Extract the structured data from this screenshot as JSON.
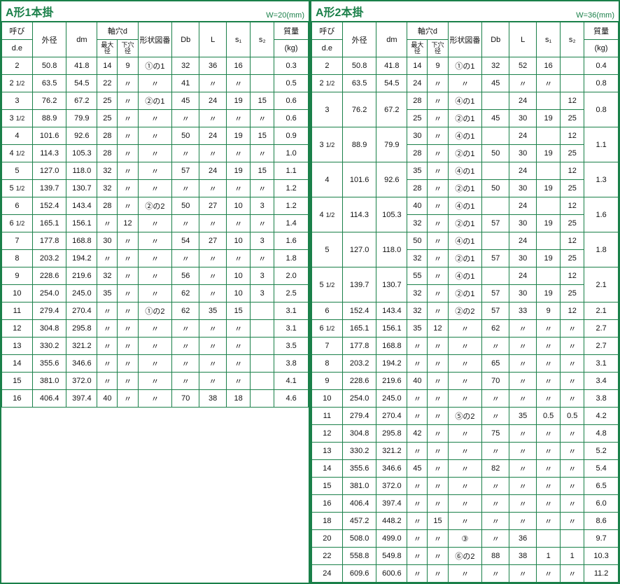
{
  "left": {
    "title": "A形1本掛",
    "wnote": "W=20(mm)",
    "headers": {
      "yobi_top": "呼び",
      "yobi_sub": "d.e",
      "gaikei_top": "外径",
      "dm": "dm",
      "jikuana": "軸穴d",
      "max": "最大径",
      "shita": "下穴径",
      "keijo": "形状図番",
      "db": "Db",
      "l": "L",
      "s1": "s₁",
      "s2": "s₂",
      "mass_top": "質量",
      "mass_sub": "(kg)"
    },
    "rows": [
      [
        "2",
        "50.8",
        "41.8",
        "14",
        "9",
        "①の1",
        "32",
        "36",
        "16",
        "",
        "0.3"
      ],
      [
        "2 1/2",
        "63.5",
        "54.5",
        "22",
        "〃",
        "〃",
        "41",
        "〃",
        "〃",
        "",
        "0.5"
      ],
      [
        "3",
        "76.2",
        "67.2",
        "25",
        "〃",
        "②の1",
        "45",
        "24",
        "19",
        "15",
        "0.6"
      ],
      [
        "3 1/2",
        "88.9",
        "79.9",
        "25",
        "〃",
        "〃",
        "〃",
        "〃",
        "〃",
        "〃",
        "0.6"
      ],
      [
        "4",
        "101.6",
        "92.6",
        "28",
        "〃",
        "〃",
        "50",
        "24",
        "19",
        "15",
        "0.9"
      ],
      [
        "4 1/2",
        "114.3",
        "105.3",
        "28",
        "〃",
        "〃",
        "〃",
        "〃",
        "〃",
        "〃",
        "1.0"
      ],
      [
        "5",
        "127.0",
        "118.0",
        "32",
        "〃",
        "〃",
        "57",
        "24",
        "19",
        "15",
        "1.1"
      ],
      [
        "5 1/2",
        "139.7",
        "130.7",
        "32",
        "〃",
        "〃",
        "〃",
        "〃",
        "〃",
        "〃",
        "1.2"
      ],
      [
        "6",
        "152.4",
        "143.4",
        "28",
        "〃",
        "②の2",
        "50",
        "27",
        "10",
        "3",
        "1.2"
      ],
      [
        "6 1/2",
        "165.1",
        "156.1",
        "〃",
        "12",
        "〃",
        "〃",
        "〃",
        "〃",
        "〃",
        "1.4"
      ],
      [
        "7",
        "177.8",
        "168.8",
        "30",
        "〃",
        "〃",
        "54",
        "27",
        "10",
        "3",
        "1.6"
      ],
      [
        "8",
        "203.2",
        "194.2",
        "〃",
        "〃",
        "〃",
        "〃",
        "〃",
        "〃",
        "〃",
        "1.8"
      ],
      [
        "9",
        "228.6",
        "219.6",
        "32",
        "〃",
        "〃",
        "56",
        "〃",
        "10",
        "3",
        "2.0"
      ],
      [
        "10",
        "254.0",
        "245.0",
        "35",
        "〃",
        "〃",
        "62",
        "〃",
        "10",
        "3",
        "2.5"
      ],
      [
        "11",
        "279.4",
        "270.4",
        "〃",
        "〃",
        "①の2",
        "62",
        "35",
        "15",
        "",
        "3.1"
      ],
      [
        "12",
        "304.8",
        "295.8",
        "〃",
        "〃",
        "〃",
        "〃",
        "〃",
        "〃",
        "",
        "3.1"
      ],
      [
        "13",
        "330.2",
        "321.2",
        "〃",
        "〃",
        "〃",
        "〃",
        "〃",
        "〃",
        "",
        "3.5"
      ],
      [
        "14",
        "355.6",
        "346.6",
        "〃",
        "〃",
        "〃",
        "〃",
        "〃",
        "〃",
        "",
        "3.8"
      ],
      [
        "15",
        "381.0",
        "372.0",
        "〃",
        "〃",
        "〃",
        "〃",
        "〃",
        "〃",
        "",
        "4.1"
      ],
      [
        "16",
        "406.4",
        "397.4",
        "40",
        "〃",
        "〃",
        "70",
        "38",
        "18",
        "",
        "4.6"
      ]
    ]
  },
  "right": {
    "title": "A形2本掛",
    "wnote": "W=36(mm)",
    "headers": {
      "yobi_top": "呼び",
      "yobi_sub": "d.e",
      "gaikei_top": "外径",
      "dm": "dm",
      "jikuana": "軸穴d",
      "max": "最大径",
      "shita": "下穴径",
      "keijo": "形状図番",
      "db": "Db",
      "l": "L",
      "s1": "s₁",
      "s2": "s₂",
      "mass_top": "質量",
      "mass_sub": "(kg)"
    },
    "rows": [
      {
        "span": 1,
        "cells": [
          "2",
          "50.8",
          "41.8",
          "14",
          "9",
          "①の1",
          "32",
          "52",
          "16",
          "",
          "0.4"
        ]
      },
      {
        "span": 1,
        "cells": [
          "2 1/2",
          "63.5",
          "54.5",
          "24",
          "〃",
          "〃",
          "45",
          "〃",
          "〃",
          "",
          "0.8"
        ]
      },
      {
        "span": 2,
        "base": [
          "3",
          "76.2",
          "67.2"
        ],
        "sub": [
          [
            "28",
            "〃",
            "④の1",
            "",
            "24",
            "",
            "12"
          ],
          [
            "25",
            "〃",
            "②の1",
            "45",
            "30",
            "19",
            "25"
          ]
        ],
        "mass": "0.8"
      },
      {
        "span": 2,
        "base": [
          "3 1/2",
          "88.9",
          "79.9"
        ],
        "sub": [
          [
            "30",
            "〃",
            "④の1",
            "",
            "24",
            "",
            "12"
          ],
          [
            "28",
            "〃",
            "②の1",
            "50",
            "30",
            "19",
            "25"
          ]
        ],
        "mass": "1.1"
      },
      {
        "span": 2,
        "base": [
          "4",
          "101.6",
          "92.6"
        ],
        "sub": [
          [
            "35",
            "〃",
            "④の1",
            "",
            "24",
            "",
            "12"
          ],
          [
            "28",
            "〃",
            "②の1",
            "50",
            "30",
            "19",
            "25"
          ]
        ],
        "mass": "1.3"
      },
      {
        "span": 2,
        "base": [
          "4 1/2",
          "114.3",
          "105.3"
        ],
        "sub": [
          [
            "40",
            "〃",
            "④の1",
            "",
            "24",
            "",
            "12"
          ],
          [
            "32",
            "〃",
            "②の1",
            "57",
            "30",
            "19",
            "25"
          ]
        ],
        "mass": "1.6"
      },
      {
        "span": 2,
        "base": [
          "5",
          "127.0",
          "118.0"
        ],
        "sub": [
          [
            "50",
            "〃",
            "④の1",
            "",
            "24",
            "",
            "12"
          ],
          [
            "32",
            "〃",
            "②の1",
            "57",
            "30",
            "19",
            "25"
          ]
        ],
        "mass": "1.8"
      },
      {
        "span": 2,
        "base": [
          "5 1/2",
          "139.7",
          "130.7"
        ],
        "sub": [
          [
            "55",
            "〃",
            "④の1",
            "",
            "24",
            "",
            "12"
          ],
          [
            "32",
            "〃",
            "②の1",
            "57",
            "30",
            "19",
            "25"
          ]
        ],
        "mass": "2.1"
      },
      {
        "span": 1,
        "cells": [
          "6",
          "152.4",
          "143.4",
          "32",
          "〃",
          "②の2",
          "57",
          "33",
          "9",
          "12",
          "2.1"
        ]
      },
      {
        "span": 1,
        "cells": [
          "6 1/2",
          "165.1",
          "156.1",
          "35",
          "12",
          "〃",
          "62",
          "〃",
          "〃",
          "〃",
          "2.7"
        ]
      },
      {
        "span": 1,
        "cells": [
          "7",
          "177.8",
          "168.8",
          "〃",
          "〃",
          "〃",
          "〃",
          "〃",
          "〃",
          "〃",
          "2.7"
        ]
      },
      {
        "span": 1,
        "cells": [
          "8",
          "203.2",
          "194.2",
          "〃",
          "〃",
          "〃",
          "65",
          "〃",
          "〃",
          "〃",
          "3.1"
        ]
      },
      {
        "span": 1,
        "cells": [
          "9",
          "228.6",
          "219.6",
          "40",
          "〃",
          "〃",
          "70",
          "〃",
          "〃",
          "〃",
          "3.4"
        ]
      },
      {
        "span": 1,
        "cells": [
          "10",
          "254.0",
          "245.0",
          "〃",
          "〃",
          "〃",
          "〃",
          "〃",
          "〃",
          "〃",
          "3.8"
        ]
      },
      {
        "span": 1,
        "cells": [
          "11",
          "279.4",
          "270.4",
          "〃",
          "〃",
          "⑤の2",
          "〃",
          "35",
          "0.5",
          "0.5",
          "4.2"
        ]
      },
      {
        "span": 1,
        "cells": [
          "12",
          "304.8",
          "295.8",
          "42",
          "〃",
          "〃",
          "75",
          "〃",
          "〃",
          "〃",
          "4.8"
        ]
      },
      {
        "span": 1,
        "cells": [
          "13",
          "330.2",
          "321.2",
          "〃",
          "〃",
          "〃",
          "〃",
          "〃",
          "〃",
          "〃",
          "5.2"
        ]
      },
      {
        "span": 1,
        "cells": [
          "14",
          "355.6",
          "346.6",
          "45",
          "〃",
          "〃",
          "82",
          "〃",
          "〃",
          "〃",
          "5.4"
        ]
      },
      {
        "span": 1,
        "cells": [
          "15",
          "381.0",
          "372.0",
          "〃",
          "〃",
          "〃",
          "〃",
          "〃",
          "〃",
          "〃",
          "6.5"
        ]
      },
      {
        "span": 1,
        "cells": [
          "16",
          "406.4",
          "397.4",
          "〃",
          "〃",
          "〃",
          "〃",
          "〃",
          "〃",
          "〃",
          "6.0"
        ]
      },
      {
        "span": 1,
        "cells": [
          "18",
          "457.2",
          "448.2",
          "〃",
          "15",
          "〃",
          "〃",
          "〃",
          "〃",
          "〃",
          "8.6"
        ]
      },
      {
        "span": 1,
        "cells": [
          "20",
          "508.0",
          "499.0",
          "〃",
          "〃",
          "③",
          "〃",
          "36",
          "",
          "",
          "9.7"
        ]
      },
      {
        "span": 1,
        "cells": [
          "22",
          "558.8",
          "549.8",
          "〃",
          "〃",
          "⑥の2",
          "88",
          "38",
          "1",
          "1",
          "10.3"
        ]
      },
      {
        "span": 1,
        "cells": [
          "24",
          "609.6",
          "600.6",
          "〃",
          "〃",
          "〃",
          "〃",
          "〃",
          "〃",
          "〃",
          "11.2"
        ]
      }
    ]
  }
}
